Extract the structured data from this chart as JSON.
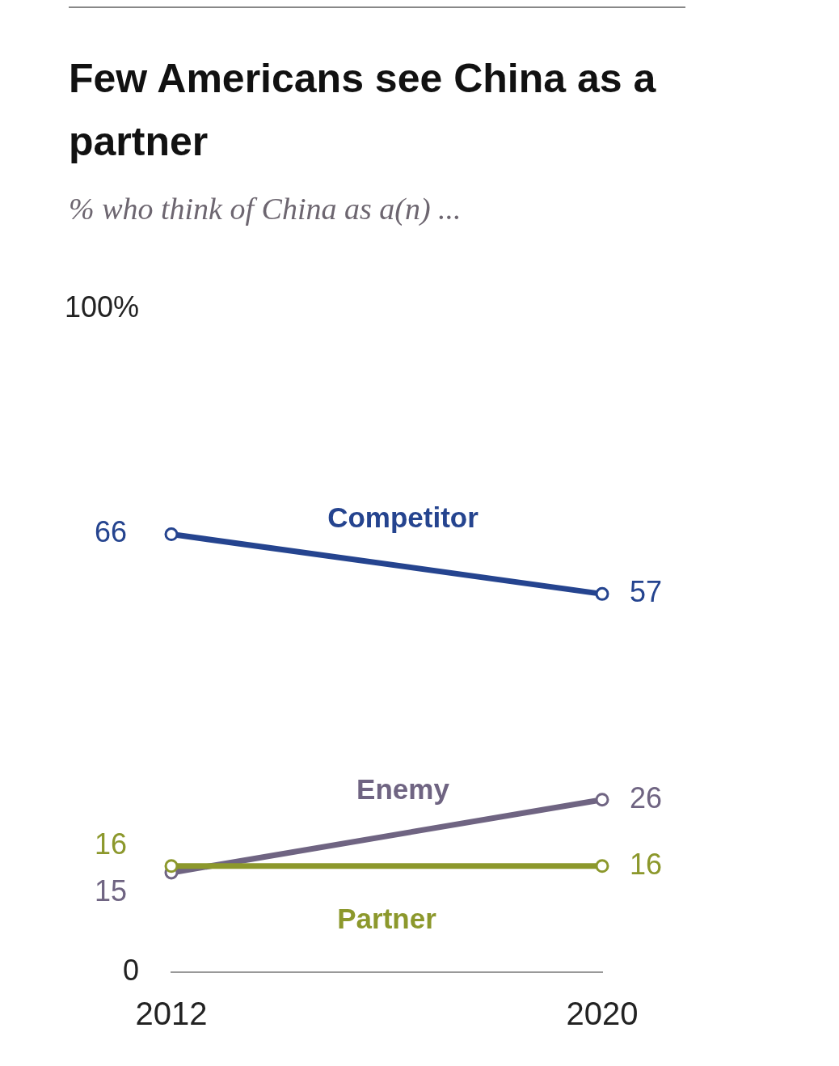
{
  "chart_data": {
    "type": "line",
    "title": "Few Americans see China as a partner",
    "subtitle": "% who think of China as a(n) ...",
    "x": [
      2012,
      2020
    ],
    "xlim": [
      2012,
      2020
    ],
    "xticks": [
      2012,
      2020
    ],
    "ylim": [
      0,
      100
    ],
    "yticks": [
      0,
      {
        "value": 100,
        "label": "100%"
      }
    ],
    "series": [
      {
        "name": "Competitor",
        "color": "#25448f",
        "values": [
          66,
          57
        ]
      },
      {
        "name": "Enemy",
        "color": "#6f6482",
        "values": [
          15,
          26
        ]
      },
      {
        "name": "Partner",
        "color": "#8c982c",
        "values": [
          16,
          16
        ]
      }
    ],
    "marker": "circle",
    "line_style": "solid",
    "grid": false,
    "legend": false,
    "data_labels": true
  }
}
